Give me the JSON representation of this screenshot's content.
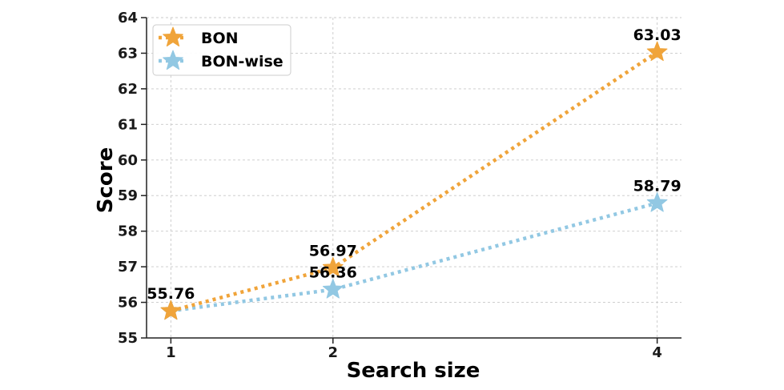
{
  "chart_data": {
    "type": "line",
    "title": "",
    "xlabel": "Search size",
    "ylabel": "Score",
    "x": [
      1,
      2,
      4
    ],
    "x_tick_labels": [
      "1",
      "2",
      "4"
    ],
    "xlim": [
      0.85,
      4.15
    ],
    "ylim": [
      55,
      64
    ],
    "y_ticks": [
      55,
      56,
      57,
      58,
      59,
      60,
      61,
      62,
      63,
      64
    ],
    "y_tick_labels": [
      "55",
      "56",
      "57",
      "58",
      "59",
      "60",
      "61",
      "62",
      "63",
      "64"
    ],
    "grid": true,
    "legend_position": "top-left",
    "series": [
      {
        "name": "BON",
        "color": "#f0a43a",
        "marker": "star",
        "line_style": "dotted",
        "values": [
          55.76,
          56.97,
          63.03
        ],
        "value_labels": [
          "55.76",
          "56.97",
          "63.03"
        ]
      },
      {
        "name": "BON-wise",
        "color": "#92c8e3",
        "marker": "star",
        "line_style": "dotted",
        "values": [
          55.76,
          56.36,
          58.79
        ],
        "value_labels": [
          "",
          "56.36",
          "58.79"
        ]
      }
    ]
  }
}
